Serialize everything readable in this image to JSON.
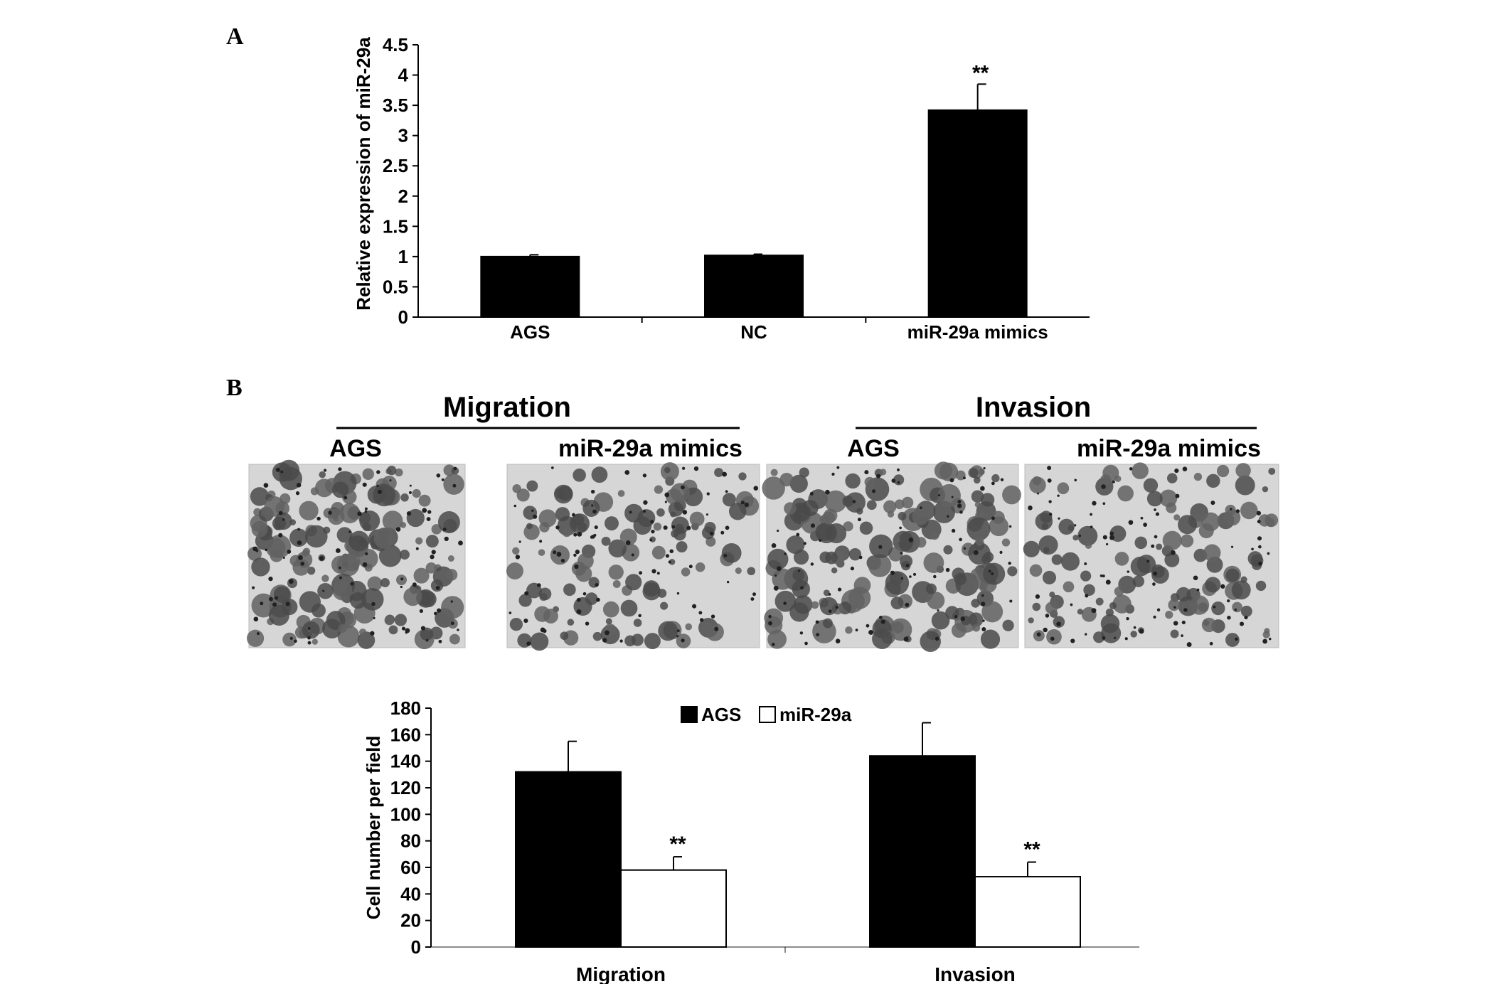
{
  "panels": {
    "a": {
      "label": "A"
    },
    "b": {
      "label": "B"
    }
  },
  "micrographs": {
    "groups": [
      {
        "title": "Migration",
        "images": [
          "AGS",
          "miR-29a mimics"
        ]
      },
      {
        "title": "Invasion",
        "images": [
          "AGS",
          "miR-29a mimics"
        ]
      }
    ]
  },
  "chart_data": [
    {
      "type": "bar",
      "panel": "A",
      "categories": [
        "AGS",
        "NC",
        "miR-29a mimics"
      ],
      "values": [
        1.0,
        1.02,
        3.42
      ],
      "errors": [
        0.03,
        0.02,
        0.43
      ],
      "annotations": [
        "",
        "",
        "**"
      ],
      "ylabel": "Relative expression of miR-29a",
      "ylim": [
        0,
        4.5
      ],
      "yticks": [
        "0",
        "0.5",
        "1",
        "1.5",
        "2",
        "2.5",
        "3",
        "3.5",
        "4",
        "4.5"
      ],
      "grid": false,
      "colors": [
        "#000000"
      ]
    },
    {
      "type": "bar",
      "panel": "B",
      "categories": [
        "Migration",
        "Invasion"
      ],
      "series": [
        {
          "name": "AGS",
          "values": [
            132,
            144
          ],
          "errors": [
            23,
            25
          ],
          "annotations": [
            "",
            ""
          ],
          "color": "#000000"
        },
        {
          "name": "miR-29a",
          "values": [
            58,
            53
          ],
          "errors": [
            10,
            11
          ],
          "annotations": [
            "**",
            "**"
          ],
          "color": "#ffffff"
        }
      ],
      "ylabel": "Cell number per field",
      "ylim": [
        0,
        180
      ],
      "yticks": [
        "0",
        "20",
        "40",
        "60",
        "80",
        "100",
        "120",
        "140",
        "160",
        "180"
      ],
      "legend": "top-center",
      "grid": false
    }
  ]
}
